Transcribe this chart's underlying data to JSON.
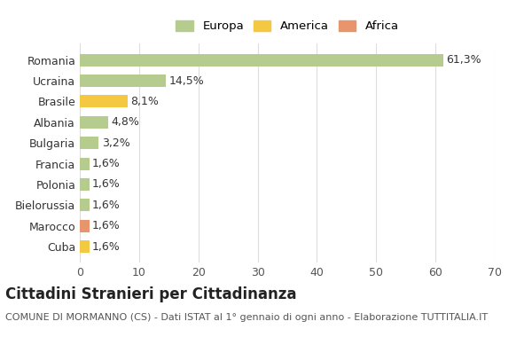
{
  "countries": [
    "Cuba",
    "Marocco",
    "Bielorussia",
    "Polonia",
    "Francia",
    "Bulgaria",
    "Albania",
    "Brasile",
    "Ucraina",
    "Romania"
  ],
  "values": [
    1.6,
    1.6,
    1.6,
    1.6,
    1.6,
    3.2,
    4.8,
    8.1,
    14.5,
    61.3
  ],
  "labels": [
    "1,6%",
    "1,6%",
    "1,6%",
    "1,6%",
    "1,6%",
    "3,2%",
    "4,8%",
    "8,1%",
    "14,5%",
    "61,3%"
  ],
  "colors": [
    "#f5c842",
    "#e8956d",
    "#b5cc8e",
    "#b5cc8e",
    "#b5cc8e",
    "#b5cc8e",
    "#b5cc8e",
    "#f5c842",
    "#b5cc8e",
    "#b5cc8e"
  ],
  "legend": [
    {
      "label": "Europa",
      "color": "#b5cc8e"
    },
    {
      "label": "America",
      "color": "#f5c842"
    },
    {
      "label": "Africa",
      "color": "#e8956d"
    }
  ],
  "xlim": [
    0,
    70
  ],
  "xticks": [
    0,
    10,
    20,
    30,
    40,
    50,
    60,
    70
  ],
  "title": "Cittadini Stranieri per Cittadinanza",
  "subtitle": "COMUNE DI MORMANNO (CS) - Dati ISTAT al 1° gennaio di ogni anno - Elaborazione TUTTITALIA.IT",
  "background_color": "#ffffff",
  "grid_color": "#dddddd",
  "bar_height": 0.6,
  "label_fontsize": 9,
  "title_fontsize": 12,
  "subtitle_fontsize": 8
}
